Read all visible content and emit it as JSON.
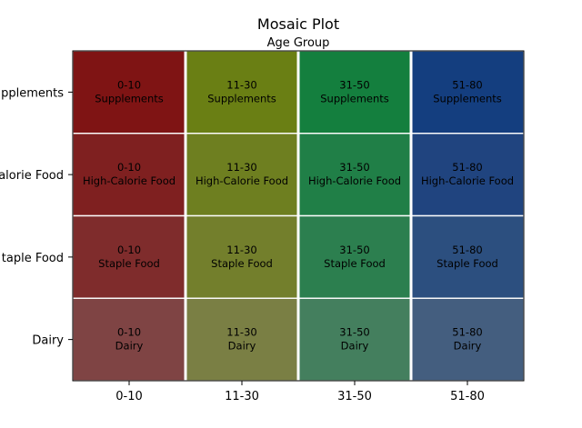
{
  "chart_data": {
    "type": "heatmap",
    "title": "Mosaic Plot",
    "subtitle": "Age Group",
    "x_categories": [
      "0-10",
      "11-30",
      "31-50",
      "51-80"
    ],
    "y_categories": [
      "Supplements",
      "High-Calorie Food",
      "Staple Food",
      "Dairy"
    ],
    "x_proportions": [
      0.25,
      0.25,
      0.25,
      0.25
    ],
    "y_proportions": [
      0.25,
      0.25,
      0.25,
      0.25
    ],
    "y_tick_labels_visible": [
      "pplements",
      "alorie Food",
      "taple Food",
      "Dairy"
    ],
    "cells": [
      {
        "x": "0-10",
        "y": "Supplements",
        "label_top": "0-10",
        "label_bottom": "Supplements",
        "color": "#7f1414"
      },
      {
        "x": "11-30",
        "y": "Supplements",
        "label_top": "11-30",
        "label_bottom": "Supplements",
        "color": "#6a7f14"
      },
      {
        "x": "31-50",
        "y": "Supplements",
        "label_top": "31-50",
        "label_bottom": "Supplements",
        "color": "#147f3e"
      },
      {
        "x": "51-80",
        "y": "Supplements",
        "label_top": "51-80",
        "label_bottom": "Supplements",
        "color": "#143e7f"
      },
      {
        "x": "0-10",
        "y": "High-Calorie Food",
        "label_top": "0-10",
        "label_bottom": "High-Calorie Food",
        "color": "#7f2020"
      },
      {
        "x": "11-30",
        "y": "High-Calorie Food",
        "label_top": "11-30",
        "label_bottom": "High-Calorie Food",
        "color": "#6e7f20"
      },
      {
        "x": "31-50",
        "y": "High-Calorie Food",
        "label_top": "31-50",
        "label_bottom": "High-Calorie Food",
        "color": "#207f47"
      },
      {
        "x": "51-80",
        "y": "High-Calorie Food",
        "label_top": "51-80",
        "label_bottom": "High-Calorie Food",
        "color": "#20447f"
      },
      {
        "x": "0-10",
        "y": "Staple Food",
        "label_top": "0-10",
        "label_bottom": "Staple Food",
        "color": "#7f2c2c"
      },
      {
        "x": "11-30",
        "y": "Staple Food",
        "label_top": "11-30",
        "label_bottom": "Staple Food",
        "color": "#737f2c"
      },
      {
        "x": "31-50",
        "y": "Staple Food",
        "label_top": "31-50",
        "label_bottom": "Staple Food",
        "color": "#2c7f4f"
      },
      {
        "x": "51-80",
        "y": "Staple Food",
        "label_top": "51-80",
        "label_bottom": "Staple Food",
        "color": "#2c4f7f"
      },
      {
        "x": "0-10",
        "y": "Dairy",
        "label_top": "0-10",
        "label_bottom": "Dairy",
        "color": "#7f4444"
      },
      {
        "x": "11-30",
        "y": "Dairy",
        "label_top": "11-30",
        "label_bottom": "Dairy",
        "color": "#7a7f44"
      },
      {
        "x": "31-50",
        "y": "Dairy",
        "label_top": "31-50",
        "label_bottom": "Dairy",
        "color": "#447f5e"
      },
      {
        "x": "51-80",
        "y": "Dairy",
        "label_top": "51-80",
        "label_bottom": "Dairy",
        "color": "#445e7f"
      }
    ],
    "grid": false,
    "legend": "none"
  }
}
